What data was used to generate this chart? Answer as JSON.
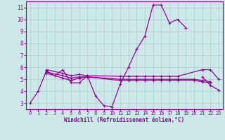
{
  "x_values": [
    0,
    1,
    2,
    3,
    4,
    5,
    6,
    7,
    8,
    9,
    10,
    11,
    12,
    13,
    14,
    15,
    16,
    17,
    18,
    19,
    20,
    21,
    22,
    23
  ],
  "line1": [
    3.0,
    4.0,
    5.7,
    5.3,
    5.8,
    4.7,
    4.7,
    5.3,
    3.6,
    2.8,
    2.7,
    4.6,
    6.0,
    7.5,
    8.6,
    11.2,
    11.2,
    9.7,
    10.0,
    9.3,
    null,
    5.2,
    4.5,
    4.1
  ],
  "line2_flat": [
    5.8,
    5.5,
    5.3,
    5.4,
    5.3,
    5.25,
    5.25,
    5.25,
    5.25,
    5.25,
    5.25,
    5.25,
    5.25,
    5.8,
    5.8,
    5.0
  ],
  "line2_flat_x": [
    2,
    4,
    5,
    6,
    7,
    11,
    12,
    13,
    14,
    15,
    16,
    17,
    18,
    21,
    22,
    23
  ],
  "line3_flat": [
    5.6,
    5.3,
    5.1,
    5.2,
    5.2,
    5.0,
    5.0,
    5.0,
    5.0,
    5.0,
    5.0,
    5.0,
    5.0,
    5.0,
    4.9,
    4.8
  ],
  "line3_flat_x": [
    2,
    4,
    5,
    6,
    7,
    11,
    12,
    13,
    14,
    15,
    16,
    17,
    18,
    20,
    21,
    22
  ],
  "line4_flat": [
    5.5,
    5.1,
    4.9,
    5.1,
    5.2,
    4.9,
    4.9,
    4.9,
    4.9,
    4.9,
    4.9,
    4.9,
    4.9,
    4.9,
    4.8,
    4.7
  ],
  "line4_flat_x": [
    2,
    4,
    5,
    6,
    7,
    11,
    12,
    13,
    14,
    15,
    16,
    17,
    18,
    20,
    21,
    22
  ],
  "bg_color": "#cce8e8",
  "grid_color": "#aacccc",
  "line_color": "#990099",
  "xlabel": "Windchill (Refroidissement éolien,°C)",
  "xlim": [
    -0.5,
    23.5
  ],
  "ylim": [
    2.5,
    11.5
  ],
  "yticks": [
    3,
    4,
    5,
    6,
    7,
    8,
    9,
    10,
    11
  ],
  "xticks": [
    0,
    1,
    2,
    3,
    4,
    5,
    6,
    7,
    8,
    9,
    10,
    11,
    12,
    13,
    14,
    15,
    16,
    17,
    18,
    19,
    20,
    21,
    22,
    23
  ]
}
